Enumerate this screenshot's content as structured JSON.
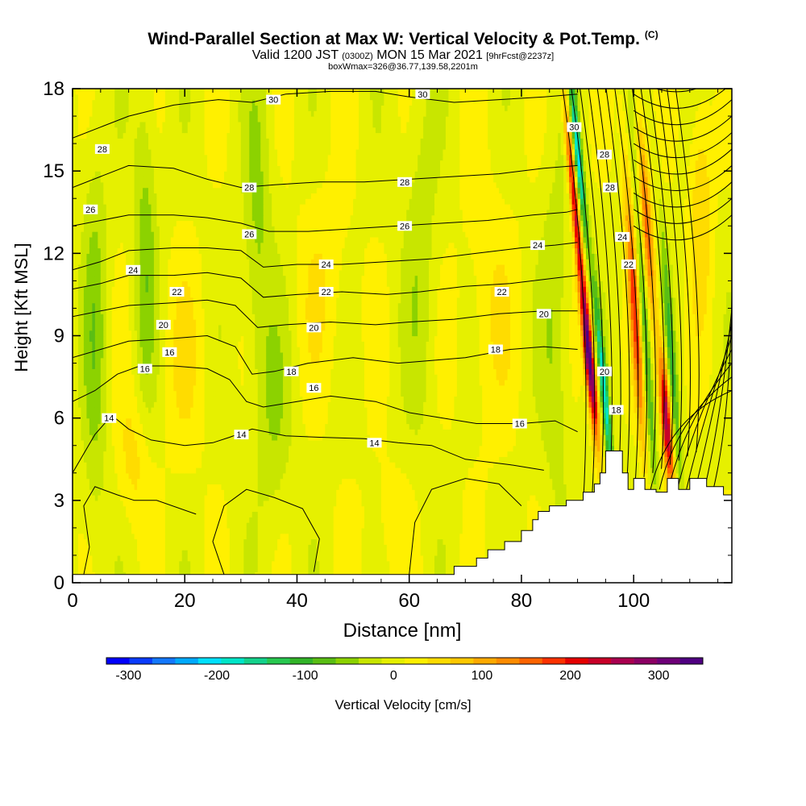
{
  "header": {
    "title": "Wind-Parallel Section at Max W: Vertical Velocity & Pot.Temp.",
    "copyright": "(C)",
    "valid_prefix": "Valid 1200 JST",
    "valid_utc": "(0300Z)",
    "valid_date": "MON 15 Mar 2021",
    "forecast": "[9hrFcst@2237z]",
    "box_info": "boxWmax=326@36.77,139.58,2201m"
  },
  "chart_data": {
    "type": "heatmap",
    "xlabel": "Distance [nm]",
    "ylabel": "Height [Kft MSL]",
    "xlim": [
      0,
      117.5
    ],
    "ylim": [
      0,
      18
    ],
    "x_ticks": [
      "0",
      "20",
      "40",
      "60",
      "80",
      "100"
    ],
    "y_ticks": [
      "0",
      "3",
      "6",
      "9",
      "12",
      "15",
      "18"
    ],
    "colorbar": {
      "label": "Vertical Velocity [cm/s]",
      "tick_labels": [
        "-300",
        "-200",
        "-100",
        "0",
        "100",
        "200",
        "300"
      ],
      "range": [
        -325,
        350
      ],
      "colors": [
        "#0000ff",
        "#0a3cff",
        "#1478ff",
        "#00aaff",
        "#00e1ff",
        "#00e6c8",
        "#14d28c",
        "#28c850",
        "#32b428",
        "#5abe14",
        "#8cd200",
        "#c8e600",
        "#e6f000",
        "#fff000",
        "#ffdc00",
        "#ffc800",
        "#ffaa00",
        "#ff8c00",
        "#ff6400",
        "#ff3200",
        "#e60000",
        "#c80028",
        "#aa0050",
        "#8c0064",
        "#6e0078",
        "#500082"
      ]
    },
    "theta_contours": [
      {
        "value": 14,
        "points": [
          [
            0,
            4.0
          ],
          [
            4,
            5.4
          ],
          [
            7,
            6.1
          ],
          [
            10,
            5.6
          ],
          [
            14,
            5.2
          ],
          [
            20,
            5.0
          ],
          [
            25,
            5.1
          ],
          [
            28,
            5.3
          ],
          [
            32,
            5.6
          ],
          [
            38,
            5.35
          ],
          [
            44,
            5.3
          ],
          [
            52,
            5.25
          ],
          [
            58,
            5.1
          ],
          [
            64,
            5.0
          ],
          [
            70,
            4.5
          ],
          [
            78,
            4.3
          ],
          [
            84,
            4.1
          ]
        ]
      },
      {
        "value": 16,
        "points": [
          [
            0,
            6.6
          ],
          [
            4,
            7.0
          ],
          [
            8,
            7.6
          ],
          [
            12,
            7.9
          ],
          [
            18,
            7.9
          ],
          [
            24,
            7.8
          ],
          [
            28,
            7.4
          ],
          [
            31,
            6.6
          ],
          [
            34,
            6.4
          ],
          [
            40,
            6.6
          ],
          [
            46,
            6.8
          ],
          [
            54,
            6.6
          ],
          [
            60,
            6.2
          ],
          [
            66,
            6.0
          ],
          [
            72,
            5.8
          ],
          [
            80,
            5.8
          ],
          [
            86,
            5.9
          ],
          [
            90,
            5.5
          ]
        ]
      },
      {
        "value": 18,
        "points": [
          [
            0,
            8.2
          ],
          [
            5,
            8.5
          ],
          [
            10,
            8.8
          ],
          [
            18,
            8.9
          ],
          [
            24,
            9.0
          ],
          [
            29,
            8.6
          ],
          [
            32,
            7.6
          ],
          [
            36,
            7.7
          ],
          [
            42,
            8.0
          ],
          [
            50,
            8.2
          ],
          [
            58,
            8.0
          ],
          [
            64,
            8.1
          ],
          [
            70,
            8.2
          ],
          [
            78,
            8.5
          ],
          [
            84,
            8.6
          ],
          [
            90,
            8.5
          ]
        ]
      },
      {
        "value": 20,
        "points": [
          [
            0,
            9.7
          ],
          [
            5,
            9.9
          ],
          [
            10,
            10.1
          ],
          [
            18,
            10.2
          ],
          [
            24,
            10.3
          ],
          [
            29,
            10.1
          ],
          [
            33,
            9.3
          ],
          [
            38,
            9.4
          ],
          [
            46,
            9.5
          ],
          [
            54,
            9.4
          ],
          [
            60,
            9.5
          ],
          [
            68,
            9.6
          ],
          [
            76,
            9.8
          ],
          [
            84,
            9.9
          ],
          [
            90,
            9.9
          ]
        ]
      },
      {
        "value": 22,
        "points": [
          [
            0,
            10.7
          ],
          [
            5,
            10.9
          ],
          [
            10,
            11.2
          ],
          [
            18,
            11.2
          ],
          [
            24,
            11.3
          ],
          [
            30,
            11.1
          ],
          [
            34,
            10.4
          ],
          [
            40,
            10.5
          ],
          [
            48,
            10.6
          ],
          [
            56,
            10.5
          ],
          [
            62,
            10.6
          ],
          [
            70,
            10.8
          ],
          [
            78,
            10.9
          ],
          [
            86,
            11.1
          ],
          [
            90,
            11.2
          ]
        ]
      },
      {
        "value": 24,
        "points": [
          [
            0,
            11.4
          ],
          [
            5,
            11.7
          ],
          [
            10,
            12.1
          ],
          [
            18,
            12.2
          ],
          [
            24,
            12.2
          ],
          [
            30,
            12.1
          ],
          [
            34,
            11.5
          ],
          [
            40,
            11.6
          ],
          [
            48,
            11.6
          ],
          [
            56,
            11.7
          ],
          [
            64,
            11.8
          ],
          [
            72,
            12.0
          ],
          [
            80,
            12.2
          ],
          [
            86,
            12.3
          ],
          [
            90,
            12.4
          ]
        ]
      },
      {
        "value": 26,
        "points": [
          [
            0,
            13.0
          ],
          [
            5,
            13.2
          ],
          [
            10,
            13.4
          ],
          [
            18,
            13.4
          ],
          [
            24,
            13.3
          ],
          [
            30,
            13.1
          ],
          [
            35,
            12.8
          ],
          [
            42,
            12.8
          ],
          [
            50,
            12.9
          ],
          [
            58,
            13.0
          ],
          [
            66,
            13.1
          ],
          [
            74,
            13.2
          ],
          [
            82,
            13.4
          ],
          [
            88,
            13.5
          ],
          [
            90,
            13.6
          ]
        ]
      },
      {
        "value": 28,
        "points": [
          [
            0,
            14.4
          ],
          [
            5,
            14.8
          ],
          [
            10,
            15.2
          ],
          [
            18,
            15.1
          ],
          [
            24,
            14.7
          ],
          [
            30,
            14.4
          ],
          [
            36,
            14.5
          ],
          [
            44,
            14.6
          ],
          [
            52,
            14.6
          ],
          [
            60,
            14.7
          ],
          [
            68,
            14.8
          ],
          [
            76,
            14.9
          ],
          [
            84,
            15.1
          ],
          [
            90,
            15.2
          ]
        ]
      },
      {
        "value": 30,
        "points": [
          [
            0,
            16.2
          ],
          [
            5,
            16.6
          ],
          [
            10,
            17.0
          ],
          [
            18,
            17.4
          ],
          [
            26,
            17.6
          ],
          [
            32,
            17.5
          ],
          [
            38,
            17.8
          ],
          [
            46,
            17.9
          ],
          [
            54,
            17.9
          ],
          [
            60,
            17.7
          ],
          [
            68,
            17.5
          ],
          [
            76,
            17.6
          ],
          [
            84,
            17.7
          ],
          [
            90,
            17.8
          ]
        ]
      }
    ],
    "theta_labels": [
      {
        "text": "28",
        "x": 5.3,
        "y": 15.8
      },
      {
        "text": "26",
        "x": 3.2,
        "y": 13.6
      },
      {
        "text": "24",
        "x": 10.8,
        "y": 11.4
      },
      {
        "text": "22",
        "x": 18.6,
        "y": 10.6
      },
      {
        "text": "20",
        "x": 16.2,
        "y": 9.4
      },
      {
        "text": "16",
        "x": 17.3,
        "y": 8.4
      },
      {
        "text": "16",
        "x": 12.9,
        "y": 7.8
      },
      {
        "text": "14",
        "x": 6.5,
        "y": 6.0
      },
      {
        "text": "30",
        "x": 35.8,
        "y": 17.6
      },
      {
        "text": "28",
        "x": 31.5,
        "y": 14.4
      },
      {
        "text": "26",
        "x": 31.5,
        "y": 12.7
      },
      {
        "text": "24",
        "x": 45.2,
        "y": 11.6
      },
      {
        "text": "22",
        "x": 45.2,
        "y": 10.6
      },
      {
        "text": "20",
        "x": 43.0,
        "y": 9.3
      },
      {
        "text": "18",
        "x": 39.0,
        "y": 7.7
      },
      {
        "text": "16",
        "x": 43.0,
        "y": 7.1
      },
      {
        "text": "14",
        "x": 30.1,
        "y": 5.4
      },
      {
        "text": "14",
        "x": 53.8,
        "y": 5.1
      },
      {
        "text": "30",
        "x": 62.4,
        "y": 17.8
      },
      {
        "text": "28",
        "x": 59.2,
        "y": 14.6
      },
      {
        "text": "26",
        "x": 59.2,
        "y": 13.0
      },
      {
        "text": "24",
        "x": 82.9,
        "y": 12.3
      },
      {
        "text": "22",
        "x": 76.5,
        "y": 10.6
      },
      {
        "text": "20",
        "x": 84.0,
        "y": 9.8
      },
      {
        "text": "18",
        "x": 75.4,
        "y": 8.5
      },
      {
        "text": "16",
        "x": 79.7,
        "y": 5.8
      },
      {
        "text": "30",
        "x": 89.4,
        "y": 16.6
      },
      {
        "text": "28",
        "x": 94.8,
        "y": 15.6
      },
      {
        "text": "28",
        "x": 95.8,
        "y": 14.4
      },
      {
        "text": "24",
        "x": 98.0,
        "y": 12.6
      },
      {
        "text": "22",
        "x": 99.1,
        "y": 11.6
      },
      {
        "text": "20",
        "x": 94.8,
        "y": 7.7
      },
      {
        "text": "18",
        "x": 96.9,
        "y": 6.3
      }
    ],
    "terrain": [
      [
        0,
        0.3
      ],
      [
        68,
        0.3
      ],
      [
        68,
        0.6
      ],
      [
        72,
        0.6
      ],
      [
        72,
        0.9
      ],
      [
        74,
        0.9
      ],
      [
        74,
        1.2
      ],
      [
        77,
        1.2
      ],
      [
        77,
        1.5
      ],
      [
        80,
        1.5
      ],
      [
        80,
        1.9
      ],
      [
        82,
        1.9
      ],
      [
        82,
        2.3
      ],
      [
        83,
        2.3
      ],
      [
        83,
        2.6
      ],
      [
        85,
        2.6
      ],
      [
        85,
        2.8
      ],
      [
        88,
        2.8
      ],
      [
        88,
        3.0
      ],
      [
        91,
        3.0
      ],
      [
        91,
        3.3
      ],
      [
        93,
        3.3
      ],
      [
        93,
        3.6
      ],
      [
        94,
        3.6
      ],
      [
        94,
        4.0
      ],
      [
        95,
        4.0
      ],
      [
        95,
        4.8
      ],
      [
        98,
        4.8
      ],
      [
        98,
        4.0
      ],
      [
        99,
        4.0
      ],
      [
        99,
        3.4
      ],
      [
        100,
        3.4
      ],
      [
        100,
        3.8
      ],
      [
        102,
        3.8
      ],
      [
        102,
        3.4
      ],
      [
        104,
        3.4
      ],
      [
        104,
        3.3
      ],
      [
        106,
        3.3
      ],
      [
        106,
        3.8
      ],
      [
        108,
        3.8
      ],
      [
        108,
        3.4
      ],
      [
        110,
        3.4
      ],
      [
        110,
        3.8
      ],
      [
        113,
        3.8
      ],
      [
        113,
        3.5
      ],
      [
        116,
        3.5
      ],
      [
        116,
        3.2
      ],
      [
        117.5,
        3.2
      ],
      [
        117.5,
        0
      ],
      [
        0,
        0
      ]
    ]
  }
}
